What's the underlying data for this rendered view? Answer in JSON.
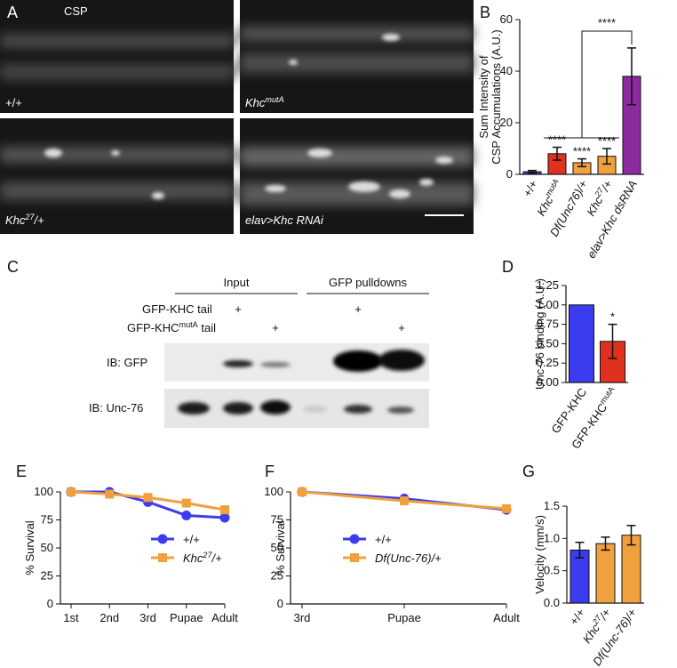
{
  "panel_a": {
    "panel": "A",
    "title": "CSP",
    "images": [
      [
        "+/+"
      ],
      [
        "Khc",
        "mutA"
      ],
      [
        "Khc",
        "27",
        "/+"
      ],
      [
        "elav>Khc RNAi"
      ]
    ]
  },
  "panel_c": {
    "panel": "C",
    "headers": [
      "Input",
      "GFP pulldowns"
    ],
    "constructs": [
      {
        "name": [
          "GFP-KHC tail"
        ],
        "marks": [
          "+",
          "+"
        ]
      },
      {
        "name": [
          "GFP-KHC",
          "mutA",
          " tail"
        ],
        "marks": [
          "+",
          "+"
        ]
      }
    ],
    "blots": [
      "IB: GFP",
      "IB: Unc-76"
    ]
  },
  "chart_data": [
    {
      "type": "bar",
      "panel": "B",
      "ylabel": [
        "Sum Intensity of",
        "CSP Accumulations (A.U.)"
      ],
      "categories": [
        [
          "+/+"
        ],
        [
          "Khc",
          "mutA"
        ],
        [
          "Df(Unc76)/+"
        ],
        [
          "Khc",
          "27",
          "/+"
        ],
        [
          "elav>Khc dsRNA"
        ]
      ],
      "italic": [
        false,
        true,
        true,
        true,
        true
      ],
      "values": [
        1,
        8,
        4.5,
        7,
        38
      ],
      "errors": [
        0.5,
        2.5,
        1.5,
        3,
        11
      ],
      "colors": [
        "#3b3bd8",
        "#e0301e",
        "#f0a03c",
        "#f0a03c",
        "#8e2aa0"
      ],
      "annotations": [
        null,
        "****",
        "****",
        "****",
        null
      ],
      "bracket_label": "****",
      "ylim": [
        0,
        60
      ],
      "yticks": [
        0,
        20,
        40,
        60
      ]
    },
    {
      "type": "bar",
      "panel": "D",
      "ylabel": [
        "Unc-76 binding (A.U.)"
      ],
      "categories": [
        [
          "GFP-KHC"
        ],
        [
          "GFP-KHC",
          "mutA"
        ]
      ],
      "italic": [
        false,
        false
      ],
      "values": [
        1.0,
        0.53
      ],
      "errors": [
        null,
        0.22
      ],
      "colors": [
        "#3b3bf0",
        "#e0301e"
      ],
      "annotations": [
        null,
        "*"
      ],
      "ylim": [
        0,
        1.25
      ],
      "yticks": [
        {
          "value": 0,
          "label": "0.00"
        },
        {
          "value": 0.25,
          "label": "0.25"
        },
        {
          "value": 0.5,
          "label": "0.50"
        },
        {
          "value": 0.75,
          "label": "0.75"
        },
        {
          "value": 1,
          "label": "1.00"
        },
        {
          "value": 1.25,
          "label": "1.25"
        }
      ]
    },
    {
      "type": "line",
      "panel": "E",
      "ylabel": [
        "% Survival"
      ],
      "categories": [
        "1st",
        "2nd",
        "3rd",
        "Pupae",
        "Adult"
      ],
      "series": [
        {
          "name": [
            "+/+"
          ],
          "color": "#3b3bf0",
          "marker": "circle",
          "values": [
            100,
            100,
            91,
            79,
            77
          ]
        },
        {
          "name": [
            "Khc",
            "27",
            "/+"
          ],
          "italic": true,
          "color": "#f0a03c",
          "marker": "square",
          "values": [
            100,
            98,
            95,
            90,
            84
          ]
        }
      ],
      "legend": "center right",
      "ylim": [
        0,
        100
      ],
      "yticks": [
        0,
        25,
        50,
        75,
        100
      ]
    },
    {
      "type": "line",
      "panel": "F",
      "ylabel": [
        "% Survival"
      ],
      "categories": [
        "3rd",
        "Pupae",
        "Adult"
      ],
      "series": [
        {
          "name": [
            "+/+"
          ],
          "color": "#3b3bf0",
          "marker": "circle",
          "values": [
            100,
            94,
            84
          ]
        },
        {
          "name": [
            "Df(Unc-76)/+"
          ],
          "italic": true,
          "color": "#f0a03c",
          "marker": "square",
          "values": [
            100,
            92,
            85
          ]
        }
      ],
      "legend": "center",
      "ylim": [
        0,
        100
      ],
      "yticks": [
        0,
        25,
        50,
        75,
        100
      ]
    },
    {
      "type": "bar",
      "panel": "G",
      "ylabel": [
        "Velocity (mm/s)"
      ],
      "categories": [
        [
          "+/+"
        ],
        [
          "Khc",
          "27",
          "/+"
        ],
        [
          "Df(Unc-76)/+"
        ]
      ],
      "italic": [
        false,
        true,
        true
      ],
      "values": [
        0.82,
        0.92,
        1.05
      ],
      "errors": [
        0.12,
        0.1,
        0.15
      ],
      "colors": [
        "#3b3bf0",
        "#f0a03c",
        "#f0a03c"
      ],
      "ylim": [
        0,
        1.5
      ],
      "yticks": [
        {
          "value": 0,
          "label": "0.0"
        },
        {
          "value": 0.5,
          "label": "0.5"
        },
        {
          "value": 1,
          "label": "1.0"
        },
        {
          "value": 1.5,
          "label": "1.5"
        }
      ]
    }
  ]
}
